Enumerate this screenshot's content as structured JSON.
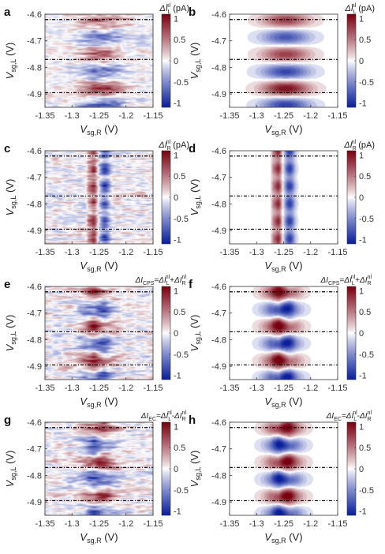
{
  "figure": {
    "panels": [
      {
        "letter": "a",
        "kind": "exp",
        "pattern": "la",
        "title": {
          "base": "ΔI",
          "sub": "L",
          "sup": "nl",
          "unit": " (pA)"
        }
      },
      {
        "letter": "b",
        "kind": "sim",
        "pattern": "lb",
        "title": {
          "base": "ΔI",
          "sub": "L",
          "sup": "nl",
          "unit": " (pA)"
        }
      },
      {
        "letter": "c",
        "kind": "exp",
        "pattern": "rc",
        "title": {
          "base": "ΔI",
          "sub": "R",
          "sup": "nl",
          "unit": " (pA)"
        }
      },
      {
        "letter": "d",
        "kind": "sim",
        "pattern": "rd",
        "title": {
          "base": "ΔI",
          "sub": "R",
          "sup": "nl",
          "unit": " (pA)"
        }
      },
      {
        "letter": "e",
        "kind": "exp",
        "pattern": "cps_e",
        "title": {
          "lhs": "ΔI",
          "lhs_sub": "CPS",
          "eq": "=",
          "t1": "ΔI",
          "t1_sub": "L",
          "t1_sup": "nl",
          "op": "+",
          "t2": "ΔI",
          "t2_sub": "R",
          "t2_sup": "nl"
        }
      },
      {
        "letter": "f",
        "kind": "sim",
        "pattern": "cps_f",
        "title": {
          "lhs": "ΔI",
          "lhs_sub": "CPS",
          "eq": "=",
          "t1": "ΔI",
          "t1_sub": "L",
          "t1_sup": "nl",
          "op": "+",
          "t2": "ΔI",
          "t2_sub": "R",
          "t2_sup": "nl"
        }
      },
      {
        "letter": "g",
        "kind": "exp",
        "pattern": "ec_g",
        "title": {
          "lhs": "ΔI",
          "lhs_sub": "EC",
          "eq": "=",
          "t1": "ΔI",
          "t1_sub": "L",
          "t1_sup": "nl",
          "op": "-",
          "t2": "ΔI",
          "t2_sub": "R",
          "t2_sup": "nl"
        }
      },
      {
        "letter": "h",
        "kind": "sim",
        "pattern": "ec_h",
        "title": {
          "lhs": "ΔI",
          "lhs_sub": "EC",
          "eq": "=",
          "t1": "ΔI",
          "t1_sub": "L",
          "t1_sup": "nl",
          "op": "-",
          "t2": "ΔI",
          "t2_sub": "R",
          "t2_sup": "nl"
        }
      }
    ],
    "x_axis": {
      "label": "V",
      "label_sub": "sg,R",
      "unit": " (V)",
      "range": [
        -1.35,
        -1.15
      ],
      "ticks": [
        -1.35,
        -1.3,
        -1.25,
        -1.2,
        -1.15
      ],
      "tick_labels": [
        "-1.35",
        "-1.3",
        "-1.25",
        "-1.2",
        "-1.15"
      ]
    },
    "y_axis": {
      "label": "V",
      "label_sub": "sg,L",
      "unit": " (V)",
      "range": [
        -4.6,
        -4.95
      ],
      "ticks": [
        -4.6,
        -4.7,
        -4.8,
        -4.9
      ],
      "tick_labels": [
        "-4.6",
        "-4.7",
        "-4.8",
        "-4.9"
      ]
    },
    "colorbar": {
      "range": [
        -1.1,
        1.1
      ],
      "ticks": [
        1,
        0.5,
        0,
        -0.5,
        -1
      ],
      "tick_labels": [
        "1",
        "0.5",
        "0",
        "-0.5",
        "-1"
      ],
      "colors": {
        "neg": "#0a1f9c",
        "zero": "#ffffff",
        "pos": "#7a0010"
      }
    },
    "dashed_lines_y": [
      -4.62,
      -4.77,
      -4.895
    ]
  }
}
